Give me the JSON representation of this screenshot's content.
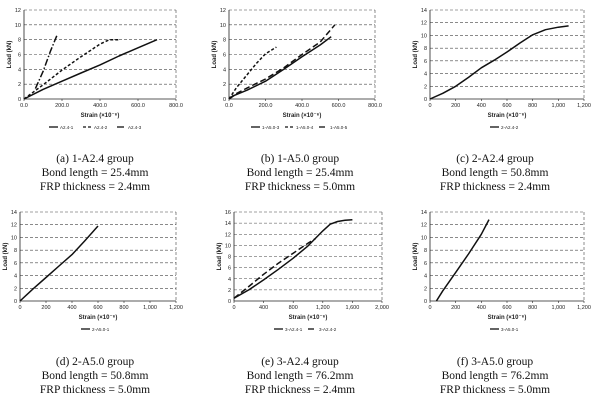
{
  "chart_data": [
    {
      "type": "line",
      "caption": [
        "(a) 1-A2.4 group",
        "Bond length = 25.4mm",
        "FRP thickness = 2.4mm"
      ],
      "xlabel": "Strain (×10⁻⁶)",
      "ylabel": "Load (kN)",
      "xlim": [
        0,
        800
      ],
      "ylim": [
        0,
        12
      ],
      "xticks": [
        0,
        200,
        400,
        600,
        800
      ],
      "xtick_labels": [
        "0.0",
        "200.0",
        "400.0",
        "600.0",
        "800.0"
      ],
      "yticks": [
        0,
        2,
        4,
        6,
        8,
        10,
        12
      ],
      "ytick_labels": [
        "0",
        "2",
        "4",
        "6",
        "8",
        "10",
        "12"
      ],
      "grid": "horizontal",
      "legend_position": "bottom",
      "series": [
        {
          "name": "A2.4-1",
          "dash": "solid",
          "x": [
            0,
            100,
            200,
            300,
            400,
            500,
            600,
            700
          ],
          "y": [
            0,
            1.3,
            2.4,
            3.5,
            4.6,
            5.8,
            6.9,
            8.0
          ]
        },
        {
          "name": "A2.4-2",
          "dash": "short",
          "x": [
            0,
            100,
            200,
            300,
            400,
            450,
            500
          ],
          "y": [
            0,
            1.9,
            3.9,
            5.7,
            7.4,
            8.0,
            8.0
          ]
        },
        {
          "name": "A2.4-3",
          "dash": "dashdot",
          "x": [
            60,
            100,
            140,
            175
          ],
          "y": [
            1.4,
            3.7,
            6.5,
            8.7
          ]
        }
      ]
    },
    {
      "type": "line",
      "caption": [
        "(b) 1-A5.0 group",
        "Bond length = 25.4mm",
        "FRP thickness = 5.0mm"
      ],
      "xlabel": "Strain (×10⁻⁶)",
      "ylabel": "Load (kN)",
      "xlim": [
        0,
        800
      ],
      "ylim": [
        0,
        12
      ],
      "xticks": [
        0,
        200,
        400,
        600,
        800
      ],
      "xtick_labels": [
        "0.0",
        "200.0",
        "400.0",
        "600.0",
        "800.0"
      ],
      "yticks": [
        0,
        2,
        4,
        6,
        8,
        10,
        12
      ],
      "ytick_labels": [
        "0",
        "2",
        "4",
        "6",
        "8",
        "10",
        "12"
      ],
      "grid": "horizontal",
      "legend_position": "bottom",
      "series": [
        {
          "name": "1-A5.0-3",
          "dash": "solid",
          "x": [
            0,
            30,
            100,
            200,
            300,
            400,
            500,
            560
          ],
          "y": [
            0,
            0.5,
            1.2,
            2.4,
            4.0,
            5.7,
            7.3,
            8.4
          ]
        },
        {
          "name": "1-A5.0-4",
          "dash": "short",
          "x": [
            0,
            40,
            100,
            150,
            200,
            260
          ],
          "y": [
            0,
            1.5,
            3.3,
            4.8,
            6.1,
            7.0
          ]
        },
        {
          "name": "1-A5.0-5",
          "dash": "long",
          "x": [
            0,
            30,
            100,
            200,
            300,
            400,
            500,
            580
          ],
          "y": [
            0,
            0.6,
            1.5,
            2.7,
            4.2,
            6.0,
            7.7,
            10.0
          ]
        }
      ]
    },
    {
      "type": "line",
      "caption": [
        "(c) 2-A2.4 group",
        "Bond length = 50.8mm",
        "FRP thickness = 2.4mm"
      ],
      "xlabel": "Strain (×10⁻⁶)",
      "ylabel": "Load (kN)",
      "xlim": [
        0,
        1200
      ],
      "ylim": [
        0,
        14
      ],
      "xticks": [
        0,
        200,
        400,
        600,
        800,
        1000,
        1200
      ],
      "xtick_labels": [
        "0",
        "200",
        "400",
        "600",
        "800",
        "1,000",
        "1,200"
      ],
      "yticks": [
        0,
        2,
        4,
        6,
        8,
        10,
        12,
        14
      ],
      "ytick_labels": [
        "0",
        "2",
        "4",
        "6",
        "8",
        "10",
        "12",
        "14"
      ],
      "grid": "horizontal",
      "legend_position": "bottom",
      "series": [
        {
          "name": "2-A2.4-2",
          "dash": "solid",
          "x": [
            0,
            100,
            200,
            300,
            400,
            500,
            600,
            700,
            800,
            900,
            1000,
            1080
          ],
          "y": [
            0,
            0.9,
            2.0,
            3.4,
            4.9,
            6.1,
            7.4,
            8.8,
            10.1,
            10.9,
            11.3,
            11.5
          ]
        }
      ]
    },
    {
      "type": "line",
      "caption": [
        "(d) 2-A5.0 group",
        "Bond length = 50.8mm",
        "FRP thickness = 5.0mm"
      ],
      "xlabel": "Strain (×10⁻⁶)",
      "ylabel": "Load (kN)",
      "xlim": [
        0,
        1200
      ],
      "ylim": [
        0,
        14
      ],
      "xticks": [
        0,
        200,
        400,
        600,
        800,
        1000,
        1200
      ],
      "xtick_labels": [
        "0",
        "200",
        "400",
        "600",
        "800",
        "1,000",
        "1,200"
      ],
      "yticks": [
        0,
        2,
        4,
        6,
        8,
        10,
        12,
        14
      ],
      "ytick_labels": [
        "0",
        "2",
        "4",
        "6",
        "8",
        "10",
        "12",
        "14"
      ],
      "grid": "horizontal",
      "legend_position": "bottom",
      "series": [
        {
          "name": "2-A5.0-1",
          "dash": "solid",
          "x": [
            0,
            100,
            200,
            300,
            400,
            500,
            600
          ],
          "y": [
            0,
            1.9,
            3.7,
            5.5,
            7.3,
            9.5,
            11.8
          ]
        }
      ]
    },
    {
      "type": "line",
      "caption": [
        "(e) 3-A2.4 group",
        "Bond length = 76.2mm",
        "FRP thickness = 2.4mm"
      ],
      "xlabel": "Strain (×10⁻⁶)",
      "ylabel": "Load (kN)",
      "xlim": [
        0,
        2000
      ],
      "ylim": [
        0,
        16
      ],
      "xticks": [
        0,
        400,
        800,
        1200,
        1600,
        2000
      ],
      "xtick_labels": [
        "0",
        "400",
        "800",
        "1,200",
        "1,600",
        "2,000"
      ],
      "yticks": [
        0,
        2,
        4,
        6,
        8,
        10,
        12,
        14,
        16
      ],
      "ytick_labels": [
        "0",
        "2",
        "4",
        "6",
        "8",
        "10",
        "12",
        "14",
        "16"
      ],
      "grid": "horizontal",
      "legend_position": "bottom",
      "series": [
        {
          "name": "3-A2.4-1",
          "dash": "solid",
          "x": [
            0,
            200,
            400,
            600,
            800,
            1000,
            1200,
            1300,
            1400,
            1500,
            1600
          ],
          "y": [
            0.5,
            2.0,
            3.8,
            5.7,
            7.7,
            9.9,
            12.6,
            13.8,
            14.3,
            14.5,
            14.6
          ]
        },
        {
          "name": "3-A2.4-2",
          "dash": "long",
          "x": [
            0,
            200,
            400,
            600,
            800,
            1000,
            1100
          ],
          "y": [
            0.5,
            2.6,
            4.8,
            6.8,
            8.6,
            10.4,
            11.2
          ]
        }
      ]
    },
    {
      "type": "line",
      "caption": [
        "(f) 3-A5.0 group",
        "Bond length = 76.2mm",
        "FRP thickness = 5.0mm"
      ],
      "xlabel": "Strain (×10⁻⁶)",
      "ylabel": "Load (kN)",
      "xlim": [
        0,
        1200
      ],
      "ylim": [
        0,
        14
      ],
      "xticks": [
        0,
        200,
        400,
        600,
        800,
        1000,
        1200
      ],
      "xtick_labels": [
        "0",
        "200",
        "400",
        "600",
        "800",
        "1,000",
        "1,200"
      ],
      "yticks": [
        0,
        2,
        4,
        6,
        8,
        10,
        12,
        14
      ],
      "ytick_labels": [
        "0",
        "2",
        "4",
        "6",
        "8",
        "10",
        "12",
        "14"
      ],
      "grid": "horizontal",
      "legend_position": "bottom",
      "series": [
        {
          "name": "3-A5.0-1",
          "dash": "solid",
          "x": [
            50,
            100,
            200,
            300,
            400,
            460
          ],
          "y": [
            0,
            1.6,
            4.5,
            7.4,
            10.5,
            12.8
          ]
        }
      ]
    }
  ]
}
